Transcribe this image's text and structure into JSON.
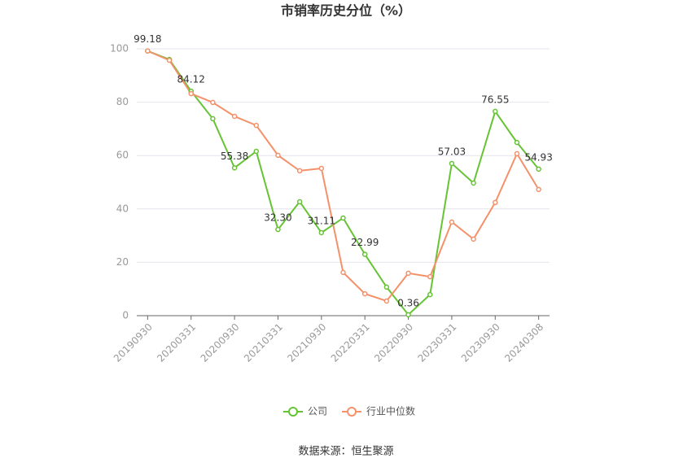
{
  "chart_data": {
    "type": "line",
    "title": "市销率历史分位（%）",
    "source": "数据来源：恒生聚源",
    "categories": [
      "20190930",
      null,
      "20200331",
      null,
      "20200930",
      null,
      "20210331",
      null,
      "20210930",
      null,
      "20220331",
      null,
      "20220930",
      null,
      "20230331",
      null,
      "20230930",
      null,
      "20240308"
    ],
    "series": [
      {
        "name": "公司",
        "color": "#66c434",
        "values": [
          99.18,
          96.0,
          84.12,
          73.8,
          55.38,
          61.6,
          32.3,
          42.7,
          31.11,
          36.6,
          22.99,
          10.7,
          0.36,
          7.9,
          57.03,
          49.7,
          76.55,
          64.9,
          54.93
        ],
        "value_labels": [
          "99.18",
          null,
          "84.12",
          null,
          "55.38",
          null,
          "32.30",
          null,
          "31.11",
          null,
          "22.99",
          null,
          "0.36",
          null,
          "57.03",
          null,
          "76.55",
          null,
          "54.93"
        ]
      },
      {
        "name": "行业中位数",
        "color": "#f4916a",
        "values": [
          99.2,
          95.7,
          83.2,
          79.9,
          74.7,
          71.3,
          60.1,
          54.3,
          55.2,
          16.2,
          8.2,
          5.5,
          15.9,
          14.6,
          35.1,
          28.7,
          42.4,
          60.7,
          47.3
        ]
      }
    ],
    "ylim": [
      0,
      100
    ],
    "yticks": [
      0,
      20,
      40,
      60,
      80,
      100
    ],
    "grid": true,
    "legend": "bottom"
  }
}
